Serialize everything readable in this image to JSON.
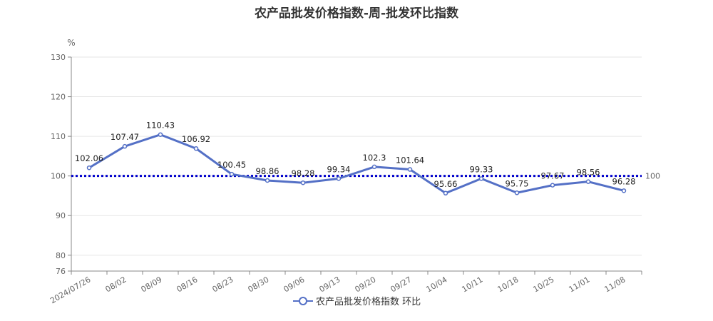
{
  "chart_data": {
    "type": "line",
    "title": "农产品批发价格指数-周-批发环比指数",
    "unit_label": "%",
    "categories": [
      "2024/07/26",
      "08/02",
      "08/09",
      "08/16",
      "08/23",
      "08/30",
      "09/06",
      "09/13",
      "09/20",
      "09/27",
      "10/04",
      "10/11",
      "10/18",
      "10/25",
      "11/01",
      "11/08"
    ],
    "series": [
      {
        "name": "农产品批发价格指数 环比",
        "color": "#5470c6",
        "values": [
          102.06,
          107.47,
          110.43,
          106.92,
          100.45,
          98.86,
          98.28,
          99.34,
          102.3,
          101.64,
          95.66,
          99.33,
          95.75,
          97.67,
          98.56,
          96.28
        ],
        "labels": [
          "102.06",
          "107.47",
          "110.43",
          "106.92",
          "100.45",
          "98.86",
          "98.28",
          "99.34",
          "102.3",
          "101.64",
          "95.66",
          "99.33",
          "95.75",
          "97.67",
          "98.56",
          "96.28"
        ]
      }
    ],
    "reference_line": {
      "value": 100,
      "label": "100",
      "color": "#0000cc",
      "style": "dotted"
    },
    "y_axis": {
      "min": 76,
      "max": 130,
      "ticks": [
        76,
        80,
        90,
        100,
        110,
        120,
        130
      ]
    },
    "grid": true,
    "legend": "bottom-center"
  }
}
